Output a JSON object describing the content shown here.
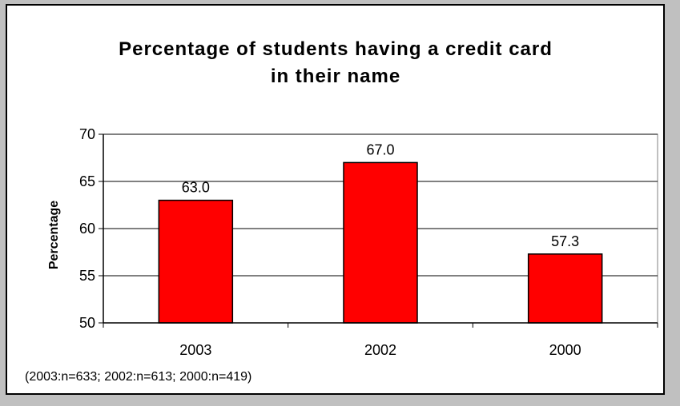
{
  "chart_data": {
    "type": "bar",
    "title_lines": [
      "Percentage of students having a credit card",
      "in their name"
    ],
    "xlabel": "",
    "ylabel": "Percentage",
    "categories": [
      "2003",
      "2002",
      "2000"
    ],
    "values": [
      63.0,
      67.0,
      57.3
    ],
    "value_labels": [
      "63.0",
      "67.0",
      "57.3"
    ],
    "ylim": [
      50,
      70
    ],
    "yticks": [
      50,
      55,
      60,
      65,
      70
    ],
    "grid": true,
    "legend": "none",
    "note": "(2003:n=633; 2002:n=613; 2000:n=419)",
    "colors": {
      "bar_fill": "#ff0000",
      "bar_stroke": "#000000",
      "grid": "#000000",
      "background": "#ffffff"
    }
  }
}
